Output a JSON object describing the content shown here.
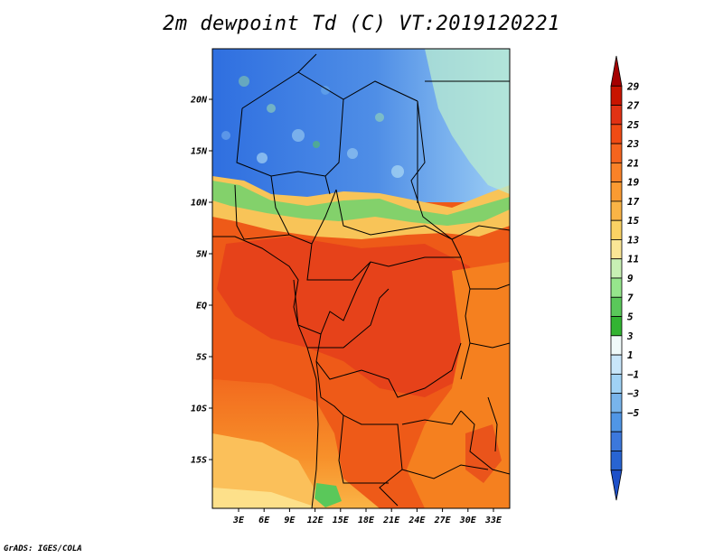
{
  "title": "2m dewpoint Td (C) VT:2019120221",
  "credit": "GrADS: IGES/COLA",
  "map": {
    "lat_labels": [
      {
        "label": "20N",
        "lat": 20
      },
      {
        "label": "15N",
        "lat": 15
      },
      {
        "label": "10N",
        "lat": 10
      },
      {
        "label": "5N",
        "lat": 5
      },
      {
        "label": "EQ",
        "lat": 0
      },
      {
        "label": "5S",
        "lat": -5
      },
      {
        "label": "10S",
        "lat": -10
      },
      {
        "label": "15S",
        "lat": -15
      }
    ],
    "lon_labels": [
      {
        "label": "3E",
        "lon": 3
      },
      {
        "label": "6E",
        "lon": 6
      },
      {
        "label": "9E",
        "lon": 9
      },
      {
        "label": "12E",
        "lon": 12
      },
      {
        "label": "15E",
        "lon": 15
      },
      {
        "label": "18E",
        "lon": 18
      },
      {
        "label": "21E",
        "lon": 21
      },
      {
        "label": "24E",
        "lon": 24
      },
      {
        "label": "27E",
        "lon": 27
      },
      {
        "label": "30E",
        "lon": 30
      },
      {
        "label": "33E",
        "lon": 33
      }
    ]
  },
  "colorbar": {
    "labels": [
      "29",
      "27",
      "25",
      "23",
      "21",
      "19",
      "17",
      "15",
      "13",
      "11",
      "9",
      "7",
      "5",
      "3",
      "1",
      "−1",
      "−3",
      "−5"
    ],
    "colors": [
      "#a50000",
      "#c81400",
      "#e13214",
      "#f04b14",
      "#f5641e",
      "#fa8228",
      "#fa9b32",
      "#fab446",
      "#fad264",
      "#fae696",
      "#c8f0b4",
      "#96e68c",
      "#5ac85a",
      "#32b432",
      "#f0fafa",
      "#c8e6fa",
      "#a0d2f5",
      "#78b4eb",
      "#5096e6",
      "#3c78dc",
      "#2864d2",
      "#1e50c8"
    ]
  }
}
